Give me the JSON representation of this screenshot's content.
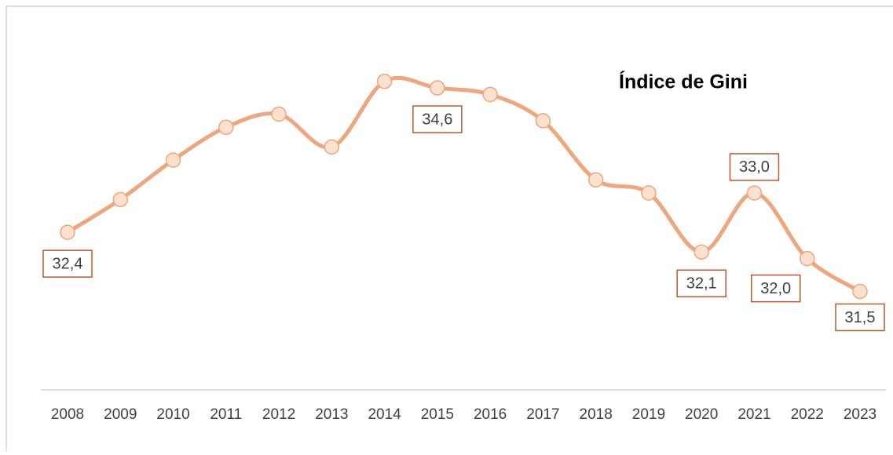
{
  "chart_data": {
    "type": "line",
    "title": "Índice de Gini",
    "categories": [
      "2008",
      "2009",
      "2010",
      "2011",
      "2012",
      "2013",
      "2014",
      "2015",
      "2016",
      "2017",
      "2018",
      "2019",
      "2020",
      "2021",
      "2022",
      "2023"
    ],
    "series": [
      {
        "name": "Índice de Gini",
        "color": "#f0a57c",
        "values": [
          32.4,
          32.9,
          33.5,
          34.0,
          34.2,
          33.7,
          34.7,
          34.6,
          34.5,
          34.1,
          33.2,
          33.0,
          32.1,
          33.0,
          32.0,
          31.5
        ],
        "value_labels": [
          "32,4",
          null,
          null,
          null,
          null,
          null,
          null,
          "34,6",
          null,
          null,
          null,
          null,
          "32,1",
          "33,0",
          "32,0",
          "31,5"
        ]
      }
    ],
    "ylim": [
      30,
      35.7
    ]
  }
}
